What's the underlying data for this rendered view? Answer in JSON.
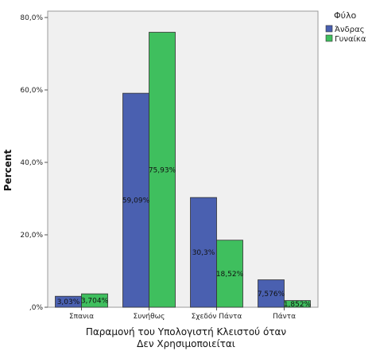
{
  "chart_data": {
    "type": "bar",
    "categories": [
      "Σπανια",
      "Συνήθως",
      "Σχεδόν Πάντα",
      "Πάντα"
    ],
    "series": [
      {
        "name": "Άνδρας",
        "color": "#4a60b0",
        "values": [
          3.03,
          59.09,
          30.3,
          7.576
        ],
        "labels": [
          "3,03%",
          "59,09%",
          "30,3%",
          "7,576%"
        ]
      },
      {
        "name": "Γυναίκα",
        "color": "#3fbf5e",
        "values": [
          3.704,
          75.93,
          18.52,
          1.852
        ],
        "labels": [
          "3,704%",
          "75,93%",
          "18,52%",
          "1,852%"
        ]
      }
    ],
    "ylabel": "Percent",
    "xlabel_lines": [
      "Παραμονή του Υπολογιστή Κλειστού όταν",
      "Δεν Χρησιμοποιείται"
    ],
    "ylim": [
      0,
      80
    ],
    "yticks": [
      0,
      20,
      40,
      60,
      80
    ],
    "ytick_labels": [
      ",0%",
      "20,0%",
      "40,0%",
      "60,0%",
      "80,0%"
    ],
    "legend_title": "Φύλο",
    "legend_position": "top-right",
    "plot_background": "#f0f0f0",
    "grid": false
  }
}
